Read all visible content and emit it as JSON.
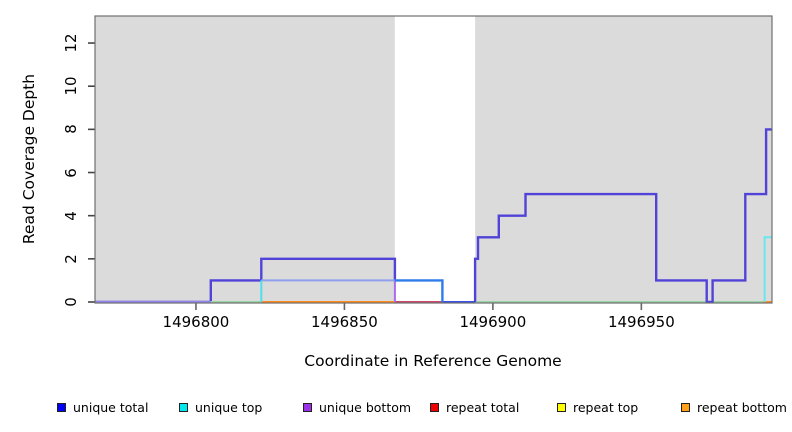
{
  "chart_data": {
    "type": "line",
    "subtype": "step-coverage-plot",
    "title": "",
    "xlabel": "Coordinate in Reference Genome",
    "ylabel": "Read Coverage Depth",
    "xlim": [
      1496766,
      1496994
    ],
    "ylim": [
      0,
      13.3
    ],
    "x_ticks": [
      "1496800",
      "1496850",
      "1496900",
      "1496950"
    ],
    "x_tick_values": [
      1496800,
      1496850,
      1496900,
      1496950
    ],
    "y_ticks": [
      "0",
      "2",
      "4",
      "6",
      "8",
      "10",
      "12"
    ],
    "y_tick_values": [
      0,
      2,
      4,
      6,
      8,
      10,
      12
    ],
    "grid": "off",
    "legend_position": "bottom",
    "plot_background_color": "#dbdbdb",
    "background_regions": [
      {
        "name": "shaded-region-left",
        "x0": 1496766,
        "x1": 1496867,
        "color": "#dbdbdb"
      },
      {
        "name": "unshaded-gap",
        "x0": 1496867,
        "x1": 1496894,
        "color": "#ffffff"
      },
      {
        "name": "shaded-region-right",
        "x0": 1496894,
        "x1": 1496994,
        "color": "#dbdbdb"
      }
    ],
    "series": [
      {
        "name": "unique total",
        "color": "#0000ee",
        "steps": [
          [
            1496766,
            0
          ],
          [
            1496805,
            1
          ],
          [
            1496822,
            2
          ],
          [
            1496867,
            1
          ],
          [
            1496883,
            0
          ],
          [
            1496894,
            2
          ],
          [
            1496895,
            3
          ],
          [
            1496902,
            4
          ],
          [
            1496911,
            5
          ],
          [
            1496955,
            1
          ],
          [
            1496972,
            0
          ],
          [
            1496974,
            1
          ],
          [
            1496985,
            5
          ],
          [
            1496992,
            8
          ],
          [
            1496994,
            8
          ]
        ]
      },
      {
        "name": "unique top",
        "color": "#00eeee",
        "steps": [
          [
            1496766,
            0
          ],
          [
            1496822,
            1
          ],
          [
            1496883,
            0
          ],
          [
            1496992,
            3
          ],
          [
            1496994,
            3
          ]
        ]
      },
      {
        "name": "unique bottom",
        "color": "#9a32e8",
        "steps": [
          [
            1496766,
            0
          ],
          [
            1496805,
            1
          ],
          [
            1496867,
            0
          ],
          [
            1496994,
            0
          ]
        ]
      },
      {
        "name": "repeat total",
        "color": "#ee0000",
        "steps": [
          [
            1496766,
            0
          ],
          [
            1496994,
            0
          ]
        ]
      },
      {
        "name": "repeat top",
        "color": "#ffff00",
        "steps": [
          [
            1496766,
            0
          ],
          [
            1496994,
            0
          ]
        ]
      },
      {
        "name": "repeat bottom",
        "color": "#ffa018",
        "steps": [
          [
            1496766,
            0
          ],
          [
            1496994,
            0
          ]
        ]
      }
    ],
    "render_lines": [
      {
        "name": "unique-total-left",
        "color": "#5243d8",
        "width": 2.4,
        "points": [
          [
            1496766,
            0
          ],
          [
            1496805,
            0
          ],
          [
            1496805,
            1
          ],
          [
            1496822,
            1
          ],
          [
            1496822,
            2
          ],
          [
            1496867,
            2
          ],
          [
            1496867,
            1
          ]
        ]
      },
      {
        "name": "level1-blend-cyan-purple",
        "color": "#8d9fee",
        "width": 2,
        "points": [
          [
            1496822,
            1
          ],
          [
            1496867,
            1
          ]
        ]
      },
      {
        "name": "baseline-blue-purple-left",
        "color": "#9186ef",
        "width": 2,
        "points": [
          [
            1496766,
            0
          ],
          [
            1496805,
            0
          ]
        ]
      },
      {
        "name": "baseline-pale-green-1",
        "color": "#9bd3a4",
        "width": 2,
        "points": [
          [
            1496805,
            0
          ],
          [
            1496822,
            0
          ]
        ]
      },
      {
        "name": "baseline-orange-1",
        "color": "#ff8c1c",
        "width": 2,
        "points": [
          [
            1496822,
            0
          ],
          [
            1496867,
            0
          ]
        ]
      },
      {
        "name": "baseline-crimson",
        "color": "#c9496b",
        "width": 2,
        "points": [
          [
            1496867,
            0
          ],
          [
            1496883,
            0
          ]
        ]
      },
      {
        "name": "baseline-blue-mid",
        "color": "#3a4fe6",
        "width": 2,
        "points": [
          [
            1496883,
            0
          ],
          [
            1496894,
            0
          ]
        ]
      },
      {
        "name": "baseline-pale-green-2",
        "color": "#9bd3a4",
        "width": 2,
        "points": [
          [
            1496894,
            0
          ],
          [
            1496991,
            0
          ]
        ]
      },
      {
        "name": "baseline-orange-2",
        "color": "#ff8c1c",
        "width": 2,
        "points": [
          [
            1496991,
            0
          ],
          [
            1496994,
            0
          ]
        ]
      },
      {
        "name": "unique-top-rise-left",
        "color": "#4fe0ea",
        "width": 2,
        "points": [
          [
            1496822,
            0
          ],
          [
            1496822,
            1
          ]
        ]
      },
      {
        "name": "unique-bottom-drop",
        "color": "#a86cf0",
        "width": 2,
        "points": [
          [
            1496867,
            1
          ],
          [
            1496867,
            0
          ]
        ]
      },
      {
        "name": "unique-top-right-step",
        "color": "#66e8f2",
        "width": 2,
        "points": [
          [
            1496991.5,
            0
          ],
          [
            1496991.5,
            3
          ],
          [
            1496994,
            3
          ]
        ]
      },
      {
        "name": "unique-total-gap-segment",
        "color": "#2e7ceb",
        "width": 2.4,
        "points": [
          [
            1496867,
            1
          ],
          [
            1496883,
            1
          ],
          [
            1496883,
            0
          ]
        ]
      },
      {
        "name": "unique-total-right",
        "color": "#5243d8",
        "width": 2.4,
        "points": [
          [
            1496894,
            0
          ],
          [
            1496894,
            2
          ],
          [
            1496895,
            2
          ],
          [
            1496895,
            3
          ],
          [
            1496902,
            3
          ],
          [
            1496902,
            4
          ],
          [
            1496911,
            4
          ],
          [
            1496911,
            5
          ],
          [
            1496955,
            5
          ],
          [
            1496955,
            1
          ],
          [
            1496972,
            1
          ],
          [
            1496972,
            0
          ],
          [
            1496974,
            0
          ],
          [
            1496974,
            1
          ],
          [
            1496985,
            1
          ],
          [
            1496985,
            5
          ],
          [
            1496992,
            5
          ],
          [
            1496992,
            8
          ],
          [
            1496994,
            8
          ]
        ]
      }
    ]
  },
  "legend": {
    "items": [
      {
        "label": "unique total",
        "color": "#0000f5"
      },
      {
        "label": "unique top",
        "color": "#00e8ee"
      },
      {
        "label": "unique bottom",
        "color": "#9a32e8"
      },
      {
        "label": "repeat total",
        "color": "#ee0000"
      },
      {
        "label": "repeat top",
        "color": "#ffff00"
      },
      {
        "label": "repeat bottom",
        "color": "#ffa018"
      }
    ]
  }
}
